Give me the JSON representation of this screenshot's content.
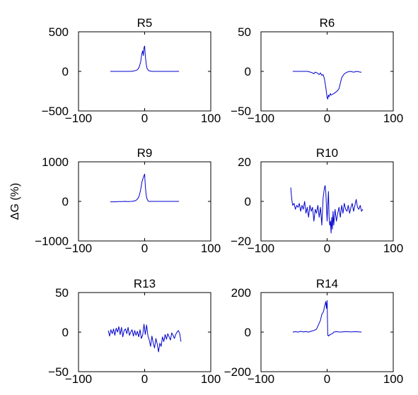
{
  "chart_data": {
    "type": "line",
    "ylabel": "ΔG (%)",
    "panels": [
      {
        "title": "R5",
        "xlim": [
          -100,
          100
        ],
        "ylim": [
          -500,
          500
        ],
        "xticks": [
          -100,
          0,
          100
        ],
        "xtick_labels": [
          "−100",
          "0",
          "100"
        ],
        "yticks": [
          -500,
          0,
          500
        ],
        "ytick_labels": [
          "−500",
          "0",
          "500"
        ],
        "x": [
          -52,
          -45,
          -40,
          -35,
          -30,
          -25,
          -20,
          -16,
          -12,
          -10,
          -8,
          -6,
          -5,
          -4,
          -3,
          -2,
          -1,
          0,
          1,
          2,
          3,
          4,
          5,
          6,
          8,
          10,
          15,
          20,
          30,
          40,
          52
        ],
        "y": [
          0,
          0,
          0,
          0,
          0,
          0,
          0,
          5,
          15,
          30,
          60,
          120,
          180,
          230,
          260,
          200,
          300,
          320,
          200,
          120,
          60,
          30,
          20,
          10,
          5,
          0,
          0,
          0,
          0,
          0,
          0
        ]
      },
      {
        "title": "R6",
        "xlim": [
          -100,
          100
        ],
        "ylim": [
          -50,
          50
        ],
        "xticks": [
          -100,
          0,
          100
        ],
        "xtick_labels": [
          "−100",
          "0",
          "100"
        ],
        "yticks": [
          -50,
          0,
          50
        ],
        "ytick_labels": [
          "−50",
          "0",
          "50"
        ],
        "x": [
          -52,
          -45,
          -40,
          -35,
          -30,
          -25,
          -22,
          -20,
          -18,
          -15,
          -12,
          -10,
          -8,
          -6,
          -4,
          -2,
          0,
          1,
          2,
          3,
          4,
          5,
          6,
          8,
          10,
          12,
          15,
          18,
          20,
          22,
          25,
          28,
          30,
          35,
          40,
          45,
          50,
          52
        ],
        "y": [
          0,
          0,
          0,
          0,
          0,
          -1,
          -2,
          -3,
          -1,
          -2,
          -4,
          -2,
          -5,
          -4,
          -10,
          -20,
          -33,
          -35,
          -30,
          -32,
          -30,
          -28,
          -30,
          -29,
          -28,
          -27,
          -25,
          -22,
          -15,
          -8,
          -4,
          -2,
          -1,
          0,
          -1,
          0,
          -1,
          -1
        ]
      },
      {
        "title": "R9",
        "xlim": [
          -100,
          100
        ],
        "ylim": [
          -1000,
          1000
        ],
        "xticks": [
          -100,
          0,
          100
        ],
        "xtick_labels": [
          "−100",
          "0",
          "100"
        ],
        "yticks": [
          -1000,
          0,
          1000
        ],
        "ytick_labels": [
          "−1000",
          "0",
          "1000"
        ],
        "x": [
          -52,
          -45,
          -40,
          -35,
          -30,
          -25,
          -20,
          -15,
          -12,
          -10,
          -8,
          -6,
          -4,
          -2,
          -1,
          0,
          1,
          2,
          3,
          4,
          5,
          6,
          8,
          10,
          15,
          20,
          30,
          40,
          52
        ],
        "y": [
          -10,
          -10,
          -5,
          -5,
          0,
          -5,
          0,
          10,
          40,
          80,
          150,
          300,
          500,
          600,
          650,
          690,
          400,
          200,
          100,
          50,
          20,
          0,
          0,
          0,
          0,
          0,
          0,
          0,
          0
        ]
      },
      {
        "title": "R10",
        "xlim": [
          -100,
          100
        ],
        "ylim": [
          -20,
          20
        ],
        "xticks": [
          -100,
          0,
          100
        ],
        "xtick_labels": [
          "−100",
          "0",
          "100"
        ],
        "yticks": [
          -20,
          0,
          20
        ],
        "ytick_labels": [
          "−20",
          "0",
          "20"
        ],
        "x": [
          -55,
          -54,
          -53,
          -52,
          -50,
          -48,
          -46,
          -44,
          -42,
          -40,
          -38,
          -36,
          -34,
          -32,
          -30,
          -28,
          -26,
          -24,
          -22,
          -20,
          -18,
          -16,
          -14,
          -12,
          -10,
          -8,
          -6,
          -4,
          -3,
          -2,
          -1,
          0,
          1,
          2,
          3,
          4,
          5,
          6,
          7,
          8,
          9,
          10,
          12,
          14,
          16,
          18,
          20,
          22,
          24,
          26,
          28,
          30,
          32,
          34,
          36,
          38,
          40,
          42,
          44,
          46,
          48,
          50,
          52,
          54
        ],
        "y": [
          7,
          3,
          0,
          -2,
          -1,
          -4,
          -2,
          -3,
          -1,
          -5,
          -2,
          -4,
          0,
          -6,
          -3,
          -8,
          -2,
          -5,
          -3,
          -10,
          -4,
          -6,
          -2,
          -8,
          -3,
          -12,
          2,
          7,
          8,
          5,
          -3,
          -10,
          -2,
          5,
          -8,
          -12,
          -10,
          -16,
          -8,
          -14,
          -5,
          -12,
          -4,
          -10,
          -6,
          -3,
          -8,
          -2,
          -6,
          -1,
          -4,
          -5,
          -2,
          -6,
          -3,
          -1,
          -5,
          -2,
          1,
          -3,
          -4,
          -2,
          -5,
          -4
        ]
      },
      {
        "title": "R13",
        "xlim": [
          -100,
          100
        ],
        "ylim": [
          -50,
          50
        ],
        "xticks": [
          -100,
          0,
          100
        ],
        "xtick_labels": [
          "−100",
          "0",
          "100"
        ],
        "yticks": [
          -50,
          0,
          50
        ],
        "ytick_labels": [
          "−50",
          "0",
          "50"
        ],
        "x": [
          -55,
          -53,
          -51,
          -49,
          -47,
          -45,
          -43,
          -41,
          -39,
          -37,
          -35,
          -33,
          -31,
          -29,
          -27,
          -25,
          -23,
          -21,
          -19,
          -17,
          -15,
          -13,
          -11,
          -9,
          -7,
          -5,
          -3,
          -1,
          1,
          3,
          5,
          7,
          9,
          11,
          13,
          15,
          17,
          19,
          21,
          23,
          25,
          27,
          29,
          31,
          33,
          35,
          37,
          39,
          41,
          43,
          45,
          47,
          49,
          51,
          53,
          55
        ],
        "y": [
          2,
          -5,
          3,
          -2,
          4,
          -4,
          5,
          0,
          7,
          -3,
          6,
          -6,
          2,
          4,
          -2,
          6,
          -4,
          0,
          3,
          -5,
          2,
          -4,
          1,
          -6,
          3,
          -8,
          -4,
          10,
          -3,
          9,
          -5,
          -10,
          -18,
          -5,
          -14,
          -20,
          -8,
          -15,
          -25,
          -14,
          -18,
          -6,
          -12,
          -3,
          -9,
          -2,
          -6,
          -10,
          -1,
          -4,
          -8,
          -3,
          0,
          2,
          -2,
          -12
        ]
      },
      {
        "title": "R14",
        "xlim": [
          -100,
          100
        ],
        "ylim": [
          -200,
          200
        ],
        "xticks": [
          -100,
          0,
          100
        ],
        "xtick_labels": [
          "−100",
          "0",
          "100"
        ],
        "yticks": [
          -200,
          0,
          200
        ],
        "ytick_labels": [
          "−200",
          "0",
          "200"
        ],
        "x": [
          -52,
          -48,
          -44,
          -40,
          -36,
          -32,
          -28,
          -24,
          -20,
          -16,
          -14,
          -12,
          -10,
          -8,
          -6,
          -5,
          -4,
          -3,
          -2,
          -1,
          0,
          1,
          2,
          3,
          4,
          6,
          8,
          10,
          14,
          20,
          28,
          36,
          44,
          52
        ],
        "y": [
          0,
          2,
          0,
          4,
          1,
          3,
          0,
          5,
          8,
          15,
          30,
          45,
          60,
          90,
          100,
          110,
          130,
          140,
          155,
          120,
          160,
          -15,
          -20,
          -15,
          -15,
          -10,
          -8,
          0,
          2,
          0,
          3,
          1,
          2,
          0
        ]
      }
    ]
  }
}
